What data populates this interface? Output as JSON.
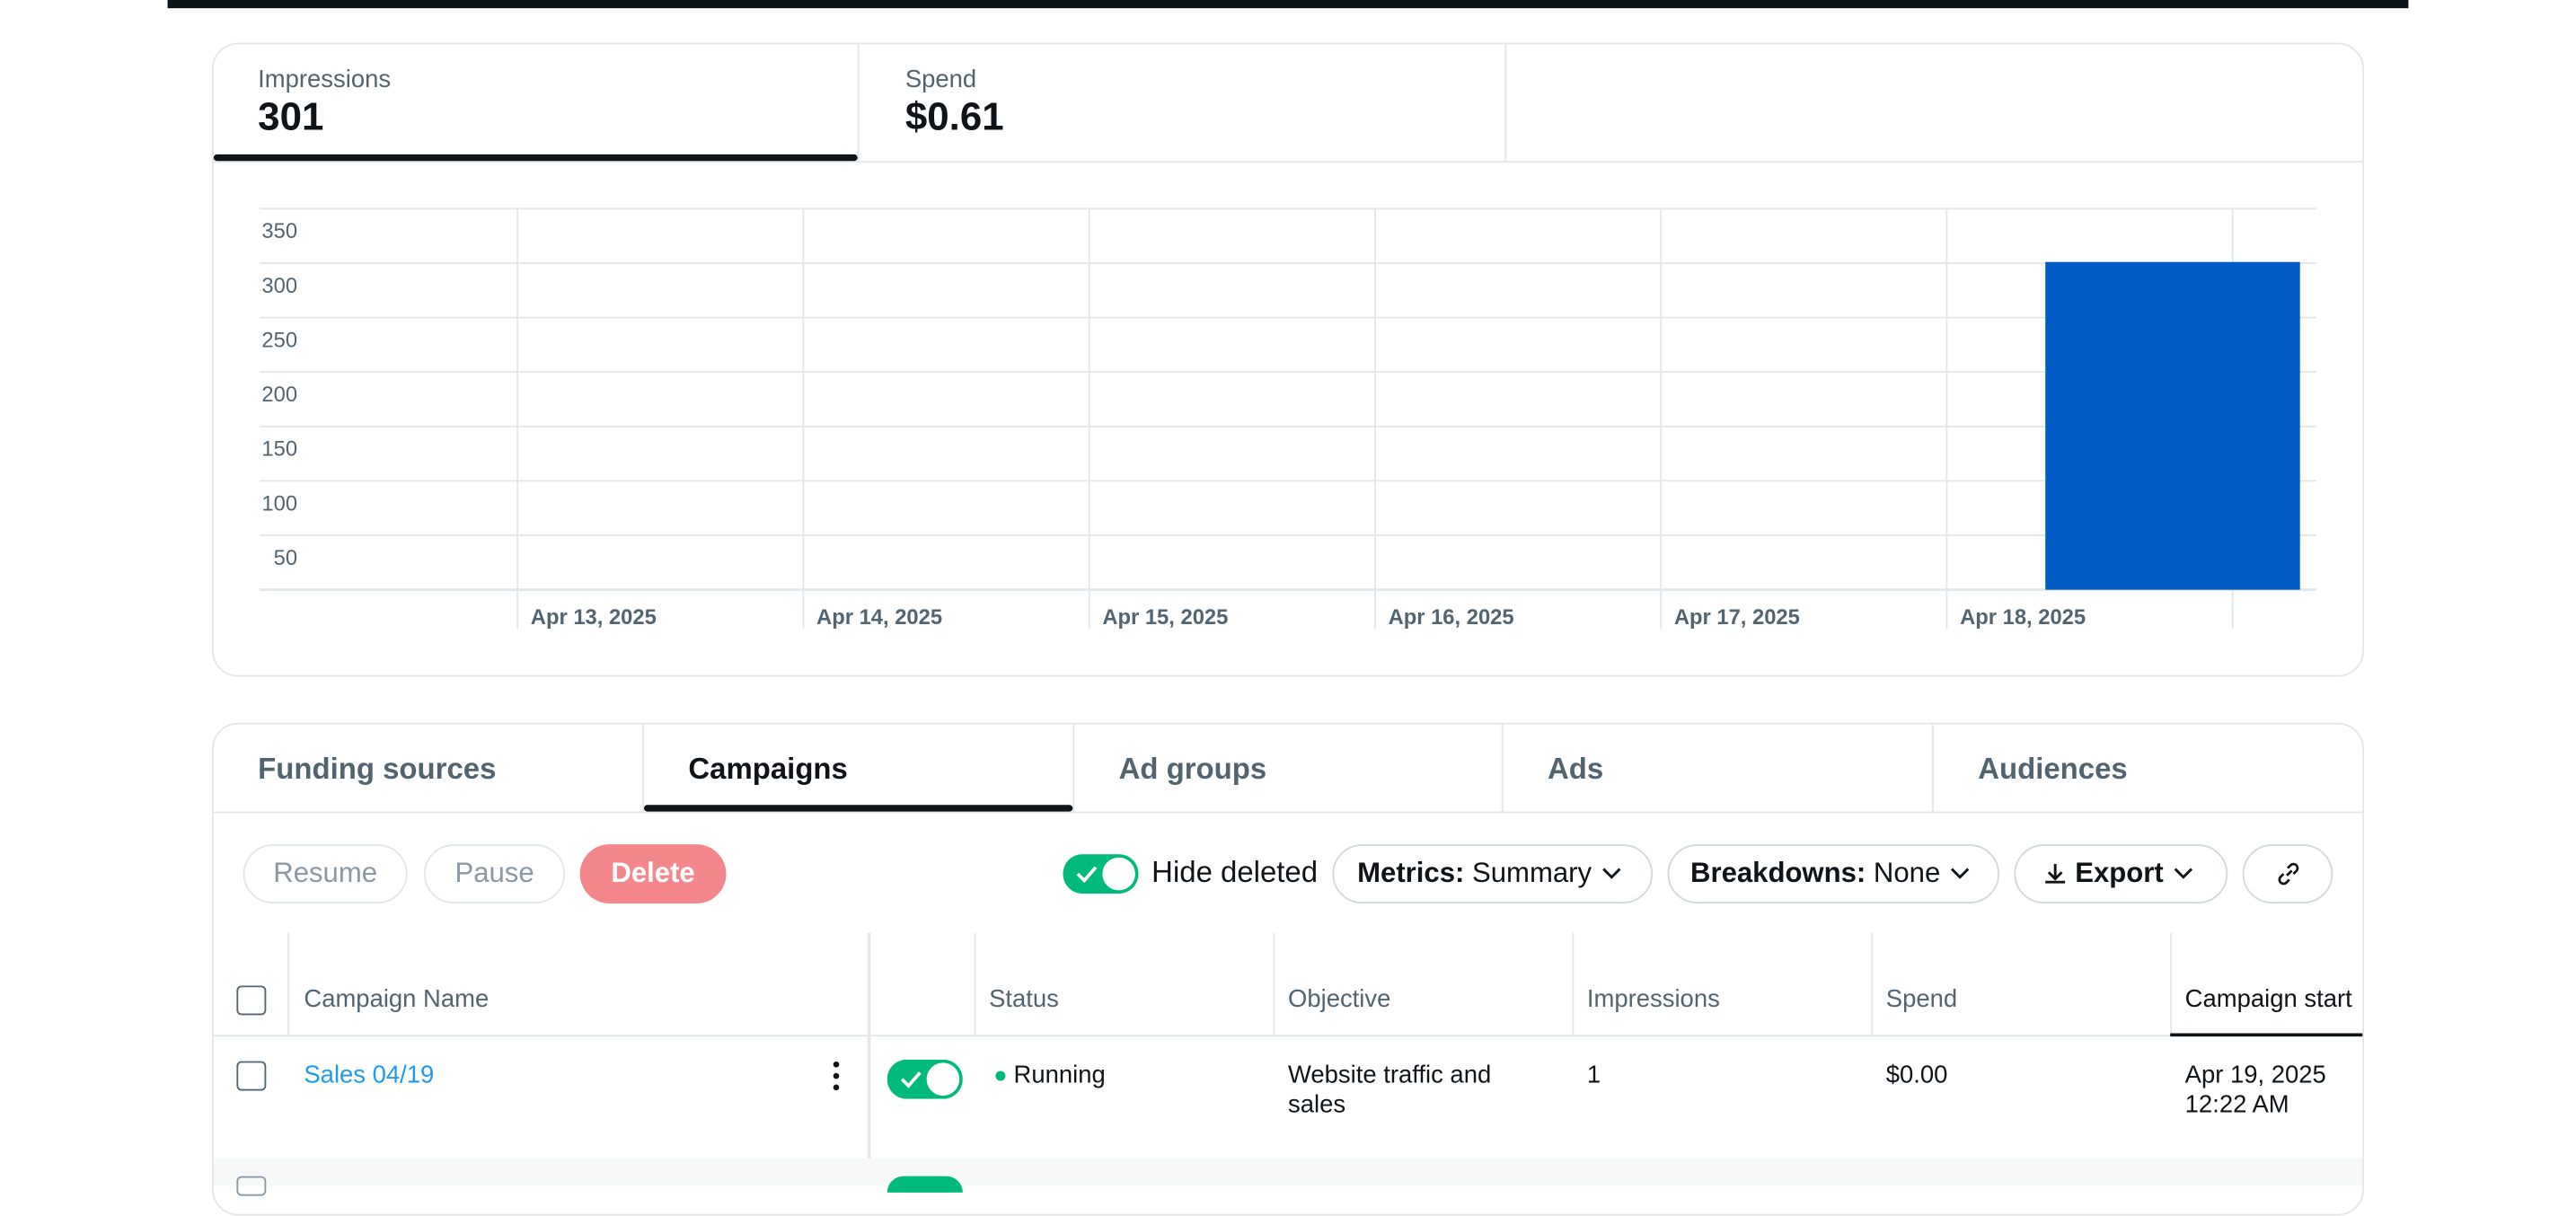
{
  "metrics": [
    {
      "label": "Impressions",
      "value": "301"
    },
    {
      "label": "Spend",
      "value": "$0.61"
    }
  ],
  "chart_data": {
    "type": "bar",
    "categories": [
      "Apr 13, 2025",
      "Apr 14, 2025",
      "Apr 15, 2025",
      "Apr 16, 2025",
      "Apr 17, 2025",
      "Apr 18, 2025"
    ],
    "values": [
      0,
      0,
      0,
      0,
      0,
      301
    ],
    "color": "#005bc4",
    "ylim": [
      0,
      350
    ],
    "yticks": [
      50,
      100,
      150,
      200,
      250,
      300,
      350
    ],
    "grid": true
  },
  "tabs": [
    "Funding sources",
    "Campaigns",
    "Ad groups",
    "Ads",
    "Audiences"
  ],
  "actions": [
    "Resume",
    "Pause",
    "Delete"
  ],
  "toggle_label": "Hide deleted",
  "filters": [
    {
      "key": "Metrics:",
      "value": "Summary"
    },
    {
      "key": "Breakdowns:",
      "value": "None"
    }
  ],
  "export": "Export",
  "table": {
    "columns": [
      "Campaign Name",
      "Status",
      "Objective",
      "Impressions",
      "Spend",
      "Campaign start"
    ],
    "rows": [
      [
        "Sales 04/19",
        "Running",
        "Website traffic and sales",
        "1",
        "$0.00",
        [
          "Apr 19, 2025",
          "12:22 AM"
        ]
      ]
    ]
  }
}
